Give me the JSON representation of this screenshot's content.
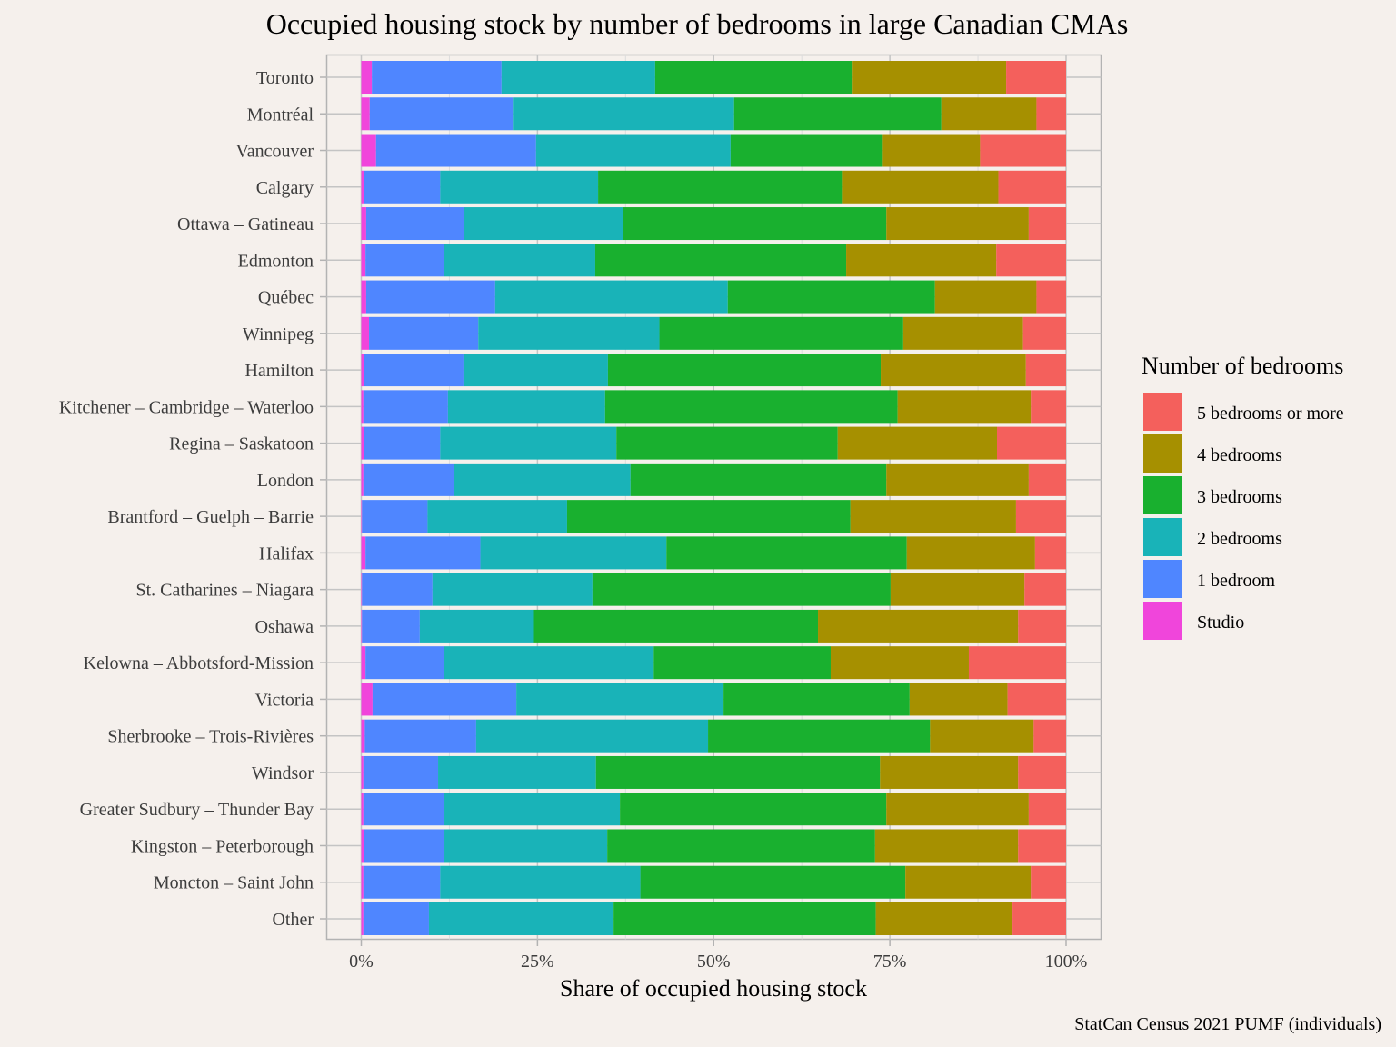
{
  "chart_data": {
    "type": "bar",
    "orientation": "horizontal",
    "stacked": "percent",
    "title": "Occupied housing stock by number of bedrooms in large Canadian CMAs",
    "xlabel": "Share of occupied housing stock",
    "ylabel": "",
    "caption": "StatCan Census 2021 PUMF (individuals)",
    "xlim": [
      0,
      100
    ],
    "x_ticks": [
      0,
      25,
      50,
      75,
      100
    ],
    "x_tick_labels": [
      "0%",
      "25%",
      "50%",
      "75%",
      "100%"
    ],
    "grid": true,
    "legend": {
      "title": "Number of bedrooms",
      "position": "right",
      "entries": [
        "5 bedrooms or more",
        "4 bedrooms",
        "3 bedrooms",
        "2 bedrooms",
        "1 bedroom",
        "Studio"
      ]
    },
    "categories": [
      "Toronto",
      "Montréal",
      "Vancouver",
      "Calgary",
      "Ottawa – Gatineau",
      "Edmonton",
      "Québec",
      "Winnipeg",
      "Hamilton",
      "Kitchener – Cambridge – Waterloo",
      "Regina – Saskatoon",
      "London",
      "Brantford – Guelph – Barrie",
      "Halifax",
      "St. Catharines – Niagara",
      "Oshawa",
      "Kelowna – Abbotsford-Mission",
      "Victoria",
      "Sherbrooke – Trois-Rivières",
      "Windsor",
      "Greater Sudbury – Thunder Bay",
      "Kingston – Peterborough",
      "Moncton – Saint John",
      "Other"
    ],
    "series": [
      {
        "name": "Studio",
        "color": "#F045DB",
        "values": [
          1.5,
          1.2,
          2.1,
          0.4,
          0.7,
          0.6,
          0.7,
          1.1,
          0.4,
          0.3,
          0.4,
          0.3,
          0.1,
          0.6,
          0.1,
          0.1,
          0.6,
          1.6,
          0.5,
          0.3,
          0.3,
          0.4,
          0.3,
          0.3
        ]
      },
      {
        "name": "1 bedroom",
        "color": "#4F86FF",
        "values": [
          18.4,
          20.3,
          22.7,
          10.8,
          13.9,
          11.1,
          18.3,
          15.5,
          14.1,
          12.0,
          10.8,
          12.8,
          9.3,
          16.3,
          10.0,
          8.2,
          11.1,
          20.4,
          15.8,
          10.6,
          11.5,
          11.4,
          10.9,
          9.3
        ]
      },
      {
        "name": "2 bedrooms",
        "color": "#19B3B8",
        "values": [
          21.8,
          31.4,
          27.6,
          22.4,
          22.6,
          21.5,
          33.0,
          25.7,
          20.5,
          22.3,
          25.0,
          25.1,
          19.8,
          26.4,
          22.7,
          16.2,
          29.8,
          29.4,
          32.9,
          22.4,
          24.9,
          23.1,
          28.4,
          26.2
        ]
      },
      {
        "name": "3 bedrooms",
        "color": "#19B02F",
        "values": [
          27.9,
          29.4,
          21.6,
          34.6,
          37.3,
          35.6,
          29.4,
          34.6,
          38.7,
          41.5,
          31.4,
          36.3,
          40.2,
          34.1,
          42.3,
          40.3,
          25.1,
          26.4,
          31.5,
          40.3,
          37.8,
          38.0,
          37.6,
          37.2
        ]
      },
      {
        "name": "4 bedrooms",
        "color": "#A69000",
        "values": [
          21.9,
          13.5,
          13.8,
          22.2,
          20.2,
          21.3,
          14.4,
          17.0,
          20.6,
          18.9,
          22.6,
          20.2,
          23.5,
          18.2,
          19.0,
          28.4,
          19.6,
          13.9,
          14.7,
          19.6,
          20.2,
          20.3,
          17.8,
          19.4
        ]
      },
      {
        "name": "5 bedrooms or more",
        "color": "#F4605C",
        "values": [
          8.5,
          4.2,
          12.2,
          9.6,
          5.3,
          9.9,
          4.2,
          6.1,
          5.7,
          5.0,
          9.8,
          5.3,
          7.1,
          4.4,
          5.9,
          6.8,
          13.8,
          8.3,
          4.6,
          6.8,
          5.3,
          6.8,
          5.0,
          7.6
        ]
      }
    ]
  }
}
